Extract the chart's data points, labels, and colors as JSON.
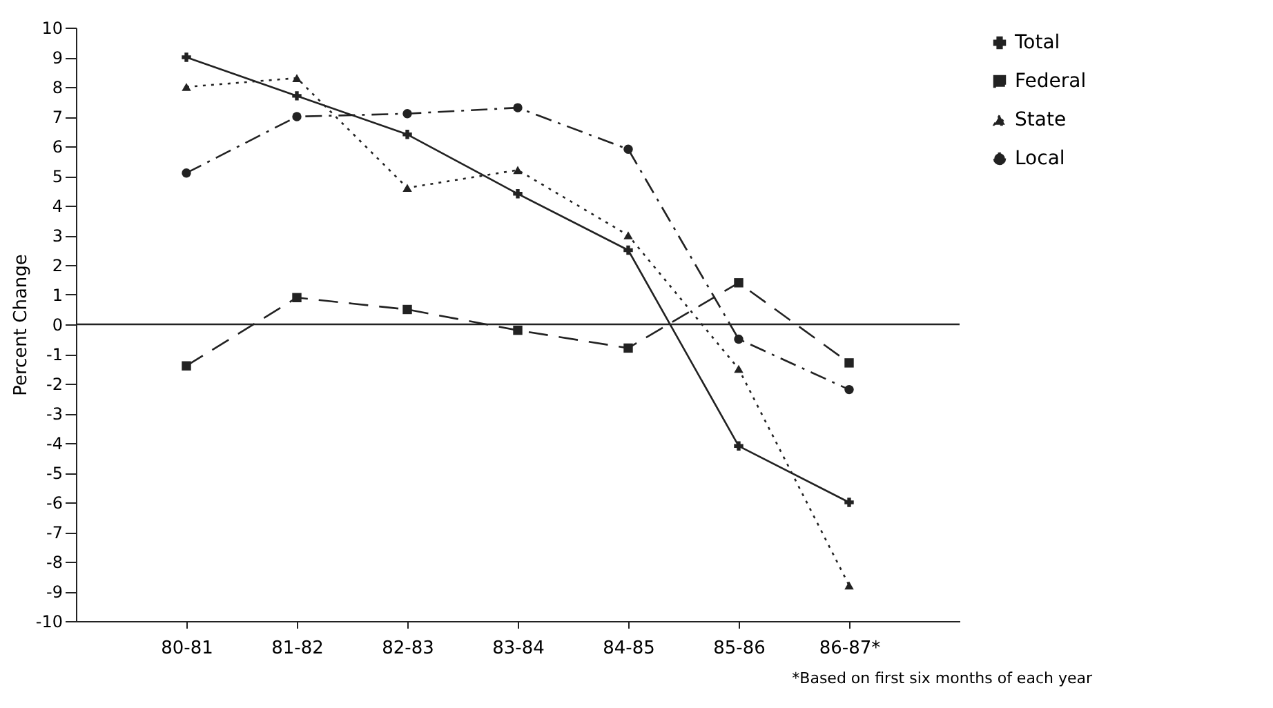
{
  "chart_data": {
    "type": "line",
    "ylabel": "Percent Change",
    "categories": [
      "80-81",
      "81-82",
      "82-83",
      "83-84",
      "84-85",
      "85-86",
      "86-87*"
    ],
    "series": [
      {
        "name": "Total",
        "color": "#222222",
        "marker": "cross",
        "line_style": "solid",
        "values": [
          9.0,
          7.7,
          6.4,
          4.4,
          2.5,
          -4.1,
          -6.0
        ]
      },
      {
        "name": "Federal",
        "color": "#222222",
        "marker": "square",
        "line_style": "dashed",
        "values": [
          -1.4,
          0.9,
          0.5,
          -0.2,
          -0.8,
          1.4,
          -1.3
        ]
      },
      {
        "name": "State",
        "color": "#222222",
        "marker": "triangle",
        "line_style": "dotted",
        "values": [
          8.0,
          8.3,
          4.6,
          5.2,
          3.0,
          -1.5,
          -8.8
        ]
      },
      {
        "name": "Local",
        "color": "#222222",
        "marker": "circle",
        "line_style": "dashdot",
        "values": [
          5.1,
          7.0,
          7.1,
          7.3,
          5.9,
          -0.5,
          -2.2
        ]
      }
    ],
    "ylim": [
      -10,
      10
    ],
    "yticks": [
      -10,
      -9,
      -8,
      -7,
      -6,
      -5,
      -4,
      -3,
      -2,
      -1,
      0,
      1,
      2,
      3,
      4,
      5,
      6,
      7,
      8,
      9,
      10
    ],
    "ref_lines": [
      {
        "axis": "y",
        "value": 0
      }
    ],
    "legend": "top right",
    "grid": false,
    "annotations": [
      "*Based on first six months of each year"
    ]
  }
}
